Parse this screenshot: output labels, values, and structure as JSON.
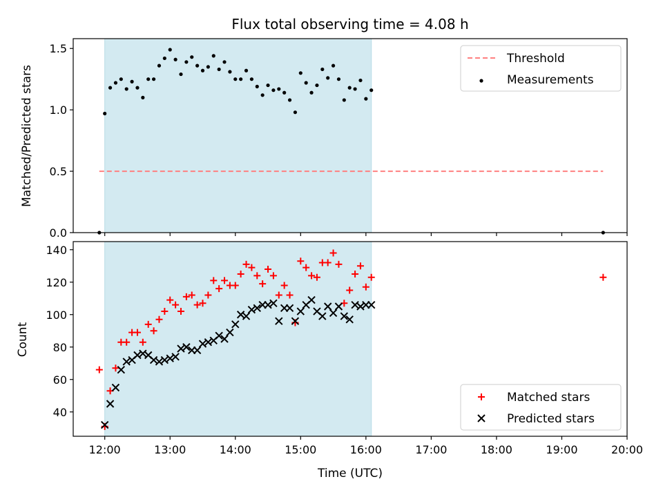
{
  "chart_data": [
    {
      "type": "scatter",
      "title": "Flux total observing time = 4.08 h",
      "xlabel": "",
      "ylabel": "Matched/Predicted stars",
      "xlim": [
        "11:31",
        "20:00"
      ],
      "ylim": [
        0,
        1.58
      ],
      "x_ticks": [
        "12:00",
        "13:00",
        "14:00",
        "15:00",
        "16:00",
        "17:00",
        "18:00",
        "19:00",
        "20:00"
      ],
      "y_ticks": [
        "0.0",
        "0.5",
        "1.0",
        "1.5"
      ],
      "legend_position": "top-right",
      "shaded_interval": {
        "start": "12:00",
        "end": "16:05",
        "color": "#d3eaf1"
      },
      "series": [
        {
          "name": "Threshold",
          "style": "dashed-line",
          "color": "#ff7f7f",
          "points": [
            {
              "x": "11:55",
              "y": 0.5
            },
            {
              "x": "19:38",
              "y": 0.5
            }
          ]
        },
        {
          "name": "Measurements",
          "style": "dot",
          "color": "#000000",
          "points": [
            {
              "x": "11:55",
              "y": 0.0
            },
            {
              "x": "12:00",
              "y": 0.97
            },
            {
              "x": "12:05",
              "y": 1.18
            },
            {
              "x": "12:10",
              "y": 1.22
            },
            {
              "x": "12:15",
              "y": 1.25
            },
            {
              "x": "12:20",
              "y": 1.17
            },
            {
              "x": "12:25",
              "y": 1.23
            },
            {
              "x": "12:30",
              "y": 1.18
            },
            {
              "x": "12:35",
              "y": 1.1
            },
            {
              "x": "12:40",
              "y": 1.25
            },
            {
              "x": "12:45",
              "y": 1.25
            },
            {
              "x": "12:50",
              "y": 1.36
            },
            {
              "x": "12:55",
              "y": 1.42
            },
            {
              "x": "13:00",
              "y": 1.49
            },
            {
              "x": "13:05",
              "y": 1.41
            },
            {
              "x": "13:10",
              "y": 1.29
            },
            {
              "x": "13:15",
              "y": 1.39
            },
            {
              "x": "13:20",
              "y": 1.43
            },
            {
              "x": "13:25",
              "y": 1.36
            },
            {
              "x": "13:30",
              "y": 1.32
            },
            {
              "x": "13:35",
              "y": 1.35
            },
            {
              "x": "13:40",
              "y": 1.44
            },
            {
              "x": "13:45",
              "y": 1.33
            },
            {
              "x": "13:50",
              "y": 1.39
            },
            {
              "x": "13:55",
              "y": 1.31
            },
            {
              "x": "14:00",
              "y": 1.25
            },
            {
              "x": "14:05",
              "y": 1.25
            },
            {
              "x": "14:10",
              "y": 1.32
            },
            {
              "x": "14:15",
              "y": 1.25
            },
            {
              "x": "14:20",
              "y": 1.19
            },
            {
              "x": "14:25",
              "y": 1.12
            },
            {
              "x": "14:30",
              "y": 1.2
            },
            {
              "x": "14:35",
              "y": 1.16
            },
            {
              "x": "14:40",
              "y": 1.17
            },
            {
              "x": "14:45",
              "y": 1.14
            },
            {
              "x": "14:50",
              "y": 1.08
            },
            {
              "x": "14:55",
              "y": 0.98
            },
            {
              "x": "15:00",
              "y": 1.3
            },
            {
              "x": "15:05",
              "y": 1.22
            },
            {
              "x": "15:10",
              "y": 1.14
            },
            {
              "x": "15:15",
              "y": 1.2
            },
            {
              "x": "15:20",
              "y": 1.33
            },
            {
              "x": "15:25",
              "y": 1.26
            },
            {
              "x": "15:30",
              "y": 1.36
            },
            {
              "x": "15:35",
              "y": 1.25
            },
            {
              "x": "15:40",
              "y": 1.08
            },
            {
              "x": "15:45",
              "y": 1.18
            },
            {
              "x": "15:50",
              "y": 1.17
            },
            {
              "x": "15:55",
              "y": 1.24
            },
            {
              "x": "16:00",
              "y": 1.09
            },
            {
              "x": "16:05",
              "y": 1.16
            },
            {
              "x": "19:38",
              "y": 0.0
            }
          ]
        }
      ]
    },
    {
      "type": "scatter",
      "title": "",
      "xlabel": "Time (UTC)",
      "ylabel": "Count",
      "xlim": [
        "11:31",
        "20:00"
      ],
      "ylim": [
        25,
        145
      ],
      "x_ticks": [
        "12:00",
        "13:00",
        "14:00",
        "15:00",
        "16:00",
        "17:00",
        "18:00",
        "19:00",
        "20:00"
      ],
      "y_ticks": [
        "40",
        "60",
        "80",
        "100",
        "120",
        "140"
      ],
      "legend_position": "bottom-right",
      "shaded_interval": {
        "start": "12:00",
        "end": "16:05",
        "color": "#d3eaf1"
      },
      "series": [
        {
          "name": "Matched stars",
          "style": "plus",
          "color": "#ff0000",
          "points": [
            {
              "x": "11:55",
              "y": 66
            },
            {
              "x": "12:00",
              "y": 31
            },
            {
              "x": "12:05",
              "y": 53
            },
            {
              "x": "12:10",
              "y": 67
            },
            {
              "x": "12:15",
              "y": 83
            },
            {
              "x": "12:20",
              "y": 83
            },
            {
              "x": "12:25",
              "y": 89
            },
            {
              "x": "12:30",
              "y": 89
            },
            {
              "x": "12:35",
              "y": 83
            },
            {
              "x": "12:40",
              "y": 94
            },
            {
              "x": "12:45",
              "y": 90
            },
            {
              "x": "12:50",
              "y": 97
            },
            {
              "x": "12:55",
              "y": 102
            },
            {
              "x": "13:00",
              "y": 109
            },
            {
              "x": "13:05",
              "y": 106
            },
            {
              "x": "13:10",
              "y": 102
            },
            {
              "x": "13:15",
              "y": 111
            },
            {
              "x": "13:20",
              "y": 112
            },
            {
              "x": "13:25",
              "y": 106
            },
            {
              "x": "13:30",
              "y": 107
            },
            {
              "x": "13:35",
              "y": 112
            },
            {
              "x": "13:40",
              "y": 121
            },
            {
              "x": "13:45",
              "y": 116
            },
            {
              "x": "13:50",
              "y": 121
            },
            {
              "x": "13:55",
              "y": 118
            },
            {
              "x": "14:00",
              "y": 118
            },
            {
              "x": "14:05",
              "y": 125
            },
            {
              "x": "14:10",
              "y": 131
            },
            {
              "x": "14:15",
              "y": 129
            },
            {
              "x": "14:20",
              "y": 124
            },
            {
              "x": "14:25",
              "y": 119
            },
            {
              "x": "14:30",
              "y": 128
            },
            {
              "x": "14:35",
              "y": 124
            },
            {
              "x": "14:40",
              "y": 112
            },
            {
              "x": "14:45",
              "y": 118
            },
            {
              "x": "14:50",
              "y": 112
            },
            {
              "x": "14:55",
              "y": 95
            },
            {
              "x": "15:00",
              "y": 133
            },
            {
              "x": "15:05",
              "y": 129
            },
            {
              "x": "15:10",
              "y": 124
            },
            {
              "x": "15:15",
              "y": 123
            },
            {
              "x": "15:20",
              "y": 132
            },
            {
              "x": "15:25",
              "y": 132
            },
            {
              "x": "15:30",
              "y": 138
            },
            {
              "x": "15:35",
              "y": 131
            },
            {
              "x": "15:40",
              "y": 107
            },
            {
              "x": "15:45",
              "y": 115
            },
            {
              "x": "15:50",
              "y": 125
            },
            {
              "x": "15:55",
              "y": 130
            },
            {
              "x": "16:00",
              "y": 117
            },
            {
              "x": "16:05",
              "y": 123
            },
            {
              "x": "19:38",
              "y": 123
            }
          ]
        },
        {
          "name": "Predicted stars",
          "style": "x",
          "color": "#000000",
          "points": [
            {
              "x": "12:00",
              "y": 32
            },
            {
              "x": "12:05",
              "y": 45
            },
            {
              "x": "12:10",
              "y": 55
            },
            {
              "x": "12:15",
              "y": 66
            },
            {
              "x": "12:20",
              "y": 71
            },
            {
              "x": "12:25",
              "y": 72
            },
            {
              "x": "12:30",
              "y": 75
            },
            {
              "x": "12:35",
              "y": 76
            },
            {
              "x": "12:40",
              "y": 75
            },
            {
              "x": "12:45",
              "y": 72
            },
            {
              "x": "12:50",
              "y": 71
            },
            {
              "x": "12:55",
              "y": 72
            },
            {
              "x": "13:00",
              "y": 73
            },
            {
              "x": "13:05",
              "y": 74
            },
            {
              "x": "13:10",
              "y": 79
            },
            {
              "x": "13:15",
              "y": 80
            },
            {
              "x": "13:20",
              "y": 78
            },
            {
              "x": "13:25",
              "y": 78
            },
            {
              "x": "13:30",
              "y": 82
            },
            {
              "x": "13:35",
              "y": 83
            },
            {
              "x": "13:40",
              "y": 84
            },
            {
              "x": "13:45",
              "y": 87
            },
            {
              "x": "13:50",
              "y": 85
            },
            {
              "x": "13:55",
              "y": 89
            },
            {
              "x": "14:00",
              "y": 94
            },
            {
              "x": "14:05",
              "y": 100
            },
            {
              "x": "14:10",
              "y": 99
            },
            {
              "x": "14:15",
              "y": 103
            },
            {
              "x": "14:20",
              "y": 104
            },
            {
              "x": "14:25",
              "y": 106
            },
            {
              "x": "14:30",
              "y": 106
            },
            {
              "x": "14:35",
              "y": 107
            },
            {
              "x": "14:40",
              "y": 96
            },
            {
              "x": "14:45",
              "y": 104
            },
            {
              "x": "14:50",
              "y": 104
            },
            {
              "x": "14:55",
              "y": 96
            },
            {
              "x": "15:00",
              "y": 102
            },
            {
              "x": "15:05",
              "y": 106
            },
            {
              "x": "15:10",
              "y": 109
            },
            {
              "x": "15:15",
              "y": 102
            },
            {
              "x": "15:20",
              "y": 99
            },
            {
              "x": "15:25",
              "y": 105
            },
            {
              "x": "15:30",
              "y": 101
            },
            {
              "x": "15:35",
              "y": 105
            },
            {
              "x": "15:40",
              "y": 99
            },
            {
              "x": "15:45",
              "y": 97
            },
            {
              "x": "15:50",
              "y": 106
            },
            {
              "x": "15:55",
              "y": 105
            },
            {
              "x": "16:00",
              "y": 106
            },
            {
              "x": "16:05",
              "y": 106
            }
          ]
        }
      ]
    }
  ]
}
